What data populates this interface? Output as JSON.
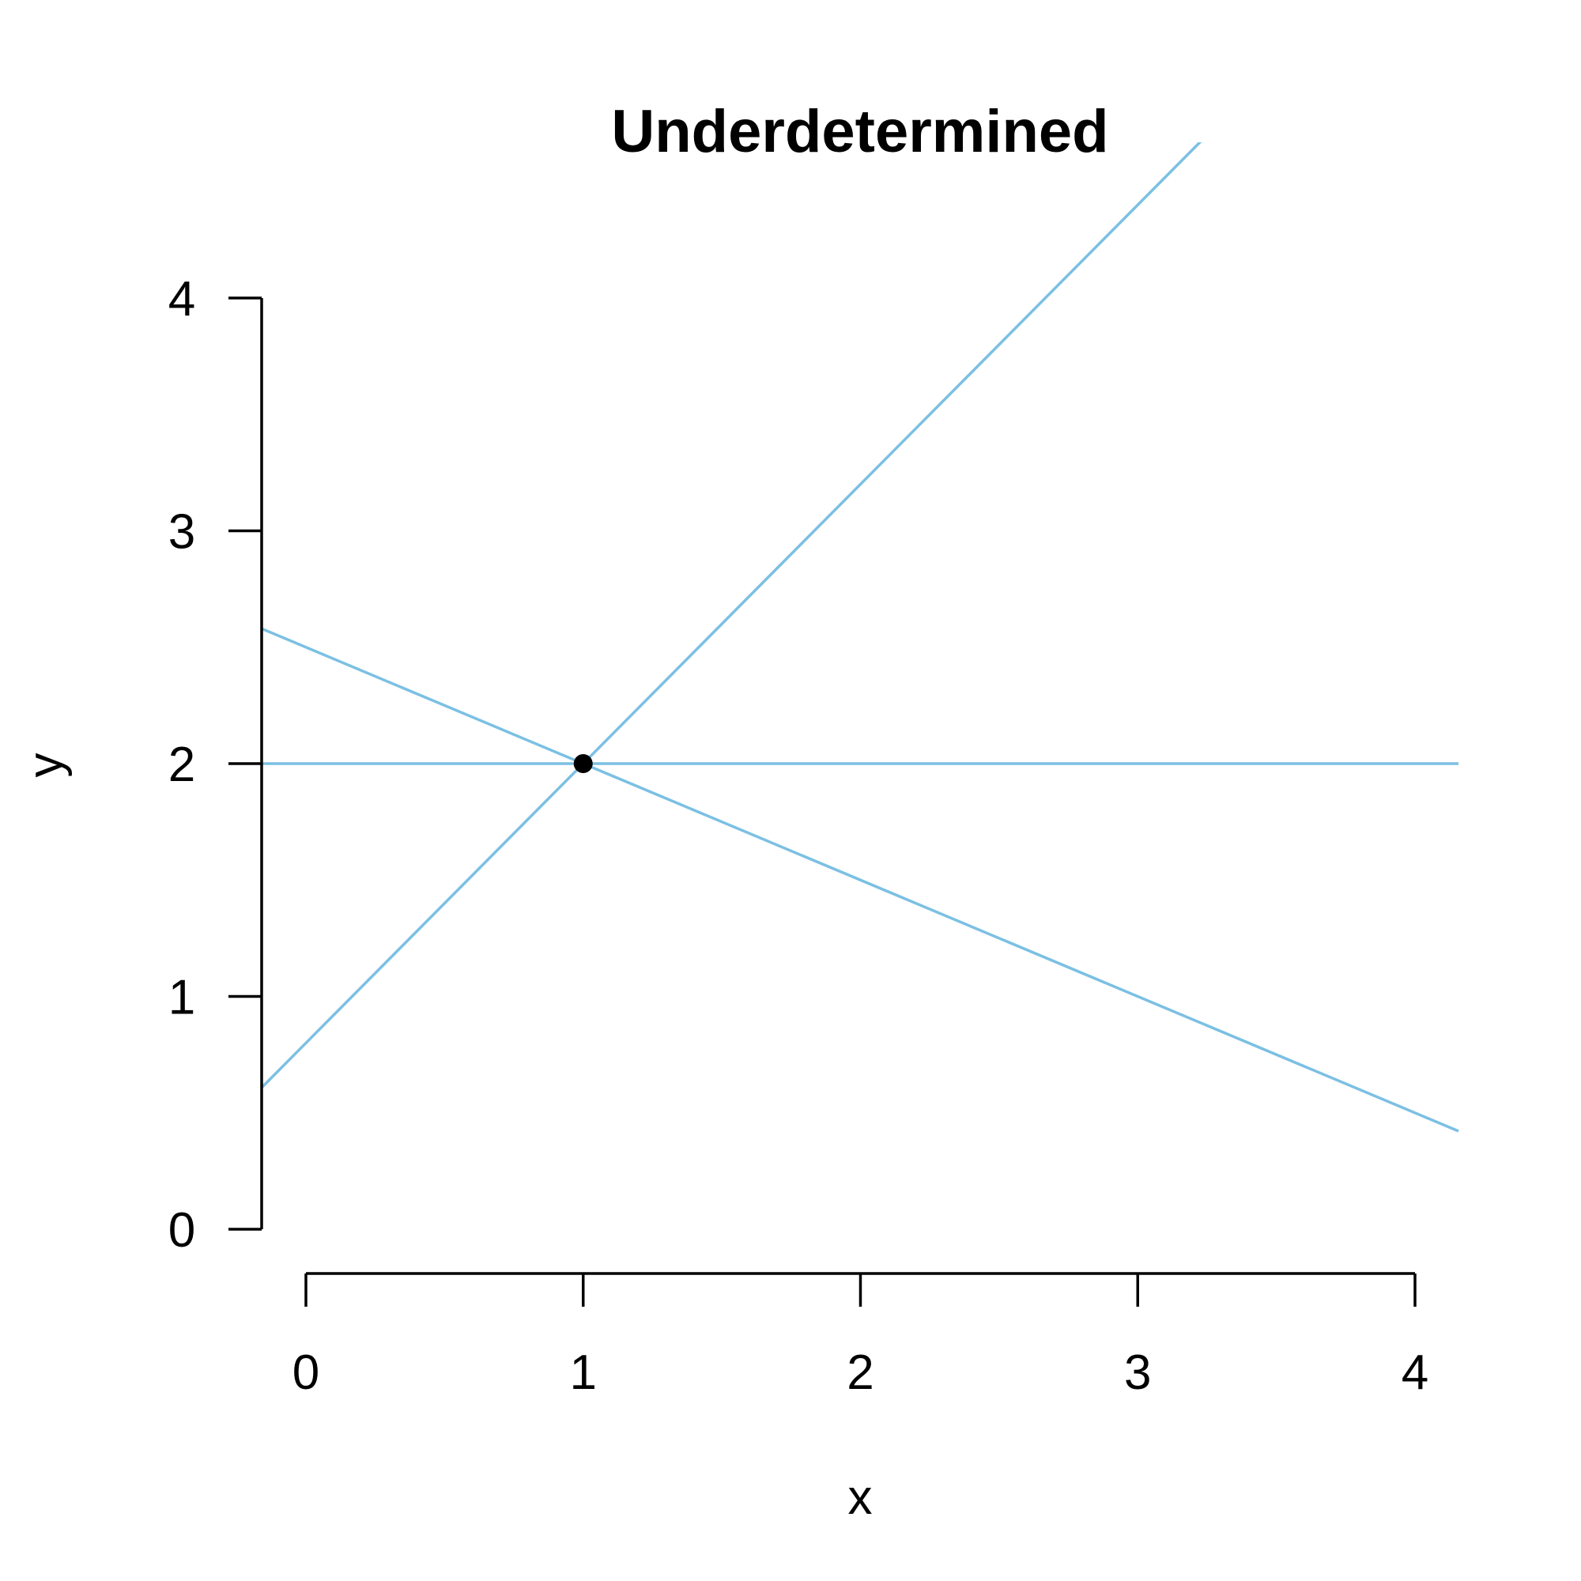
{
  "chart_data": {
    "type": "line",
    "title": "Underdetermined",
    "xlabel": "x",
    "ylabel": "y",
    "xlim": [
      0,
      4
    ],
    "ylim": [
      0,
      4
    ],
    "x_ticks": [
      0,
      1,
      2,
      3,
      4
    ],
    "y_ticks": [
      0,
      1,
      2,
      3,
      4
    ],
    "grid": false,
    "line_color": "#7BC0E3",
    "point_color": "#000000",
    "series": [
      {
        "intercept": 2,
        "slope": 0
      },
      {
        "intercept": 0.8,
        "slope": 1.2
      },
      {
        "intercept": 2.5,
        "slope": -0.5
      }
    ],
    "points": [
      {
        "x": 1,
        "y": 2
      }
    ]
  }
}
